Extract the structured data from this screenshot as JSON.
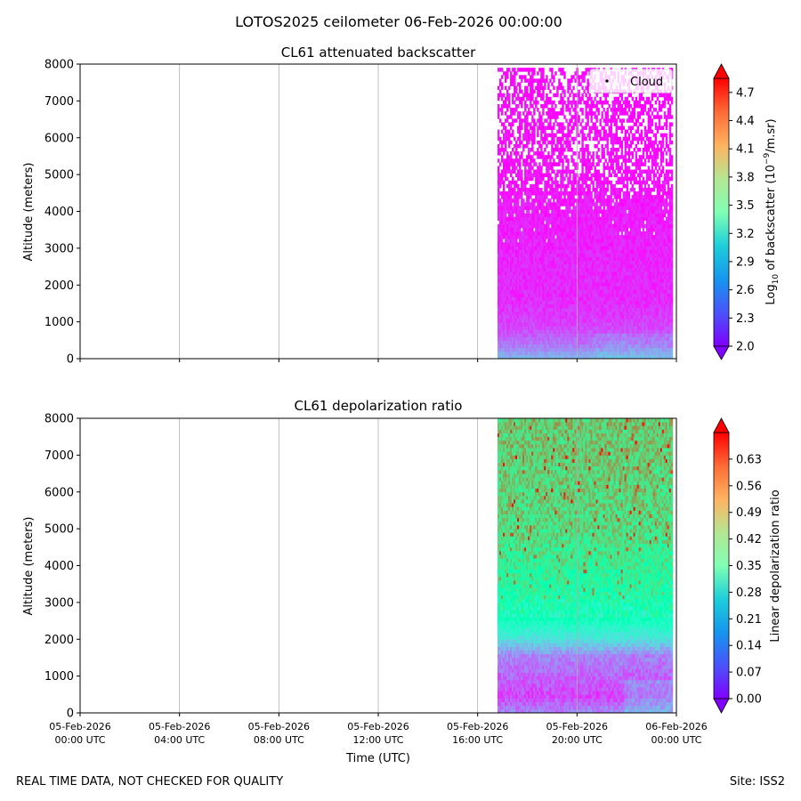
{
  "figure": {
    "suptitle": "LOTOS2025 ceilometer 06-Feb-2026 00:00:00",
    "footer_left": "REAL TIME DATA, NOT CHECKED FOR QUALITY",
    "footer_right": "Site: ISS2",
    "xlabel": "Time (UTC)"
  },
  "chart_data": [
    {
      "type": "heatmap",
      "title": "CL61 attenuated backscatter",
      "ylabel": "Altitude (meters)",
      "ylim": [
        0,
        8000
      ],
      "yticks": [
        "0",
        "1000",
        "2000",
        "3000",
        "4000",
        "5000",
        "6000",
        "7000",
        "8000"
      ],
      "xlim_hours": [
        0,
        24
      ],
      "xtick_hours": [
        0,
        4,
        8,
        12,
        16,
        20,
        24
      ],
      "xtick_labels_shown": false,
      "data_time_range_hours": [
        16.8,
        23.85
      ],
      "data_altitude_max": 7900,
      "colorbar": {
        "label_prefix": "Log",
        "label_sub": "10",
        "label_mid": " of backscatter (10",
        "label_sup": "−9",
        "label_suffix": "/m.sr)",
        "vmin": 2.0,
        "vmax": 4.85,
        "ticks": [
          "2.0",
          "2.3",
          "2.6",
          "2.9",
          "3.2",
          "3.5",
          "3.8",
          "4.1",
          "4.4",
          "4.7"
        ],
        "colormap": "rainbow"
      },
      "legend": {
        "label": "Cloud",
        "position": "top-right"
      },
      "profile": {
        "description_levels_m": [
          0,
          300,
          800,
          1500,
          3000,
          4000,
          5000,
          7900
        ],
        "typical_log_value": [
          2.7,
          2.45,
          2.25,
          2.15,
          2.12,
          2.1,
          2.05,
          2.02
        ],
        "missing_fraction": [
          0.0,
          0.0,
          0.0,
          0.0,
          0.0,
          0.04,
          0.35,
          0.5
        ]
      }
    },
    {
      "type": "heatmap",
      "title": "CL61 depolarization ratio",
      "ylabel": "Altitude (meters)",
      "ylim": [
        0,
        8000
      ],
      "yticks": [
        "0",
        "1000",
        "2000",
        "3000",
        "4000",
        "5000",
        "6000",
        "7000",
        "8000"
      ],
      "xlim_hours": [
        0,
        24
      ],
      "xtick_hours": [
        0,
        4,
        8,
        12,
        16,
        20,
        24
      ],
      "xtick_labels": [
        [
          "05-Feb-2026",
          "00:00 UTC"
        ],
        [
          "05-Feb-2026",
          "04:00 UTC"
        ],
        [
          "05-Feb-2026",
          "08:00 UTC"
        ],
        [
          "05-Feb-2026",
          "12:00 UTC"
        ],
        [
          "05-Feb-2026",
          "16:00 UTC"
        ],
        [
          "05-Feb-2026",
          "20:00 UTC"
        ],
        [
          "06-Feb-2026",
          "00:00 UTC"
        ]
      ],
      "data_time_range_hours": [
        16.8,
        23.85
      ],
      "data_altitude_max": 8000,
      "colorbar": {
        "label": "Linear depolarization ratio",
        "vmin": 0.0,
        "vmax": 0.7,
        "ticks": [
          "0.00",
          "0.07",
          "0.14",
          "0.21",
          "0.28",
          "0.35",
          "0.42",
          "0.49",
          "0.56",
          "0.63"
        ],
        "colormap": "rainbow"
      },
      "profile": {
        "description_levels_m": [
          0,
          400,
          800,
          1500,
          2000,
          2500,
          3500,
          5000,
          8000
        ],
        "typical_ratio": [
          0.12,
          0.06,
          0.08,
          0.12,
          0.25,
          0.33,
          0.4,
          0.47,
          0.5
        ]
      }
    }
  ]
}
